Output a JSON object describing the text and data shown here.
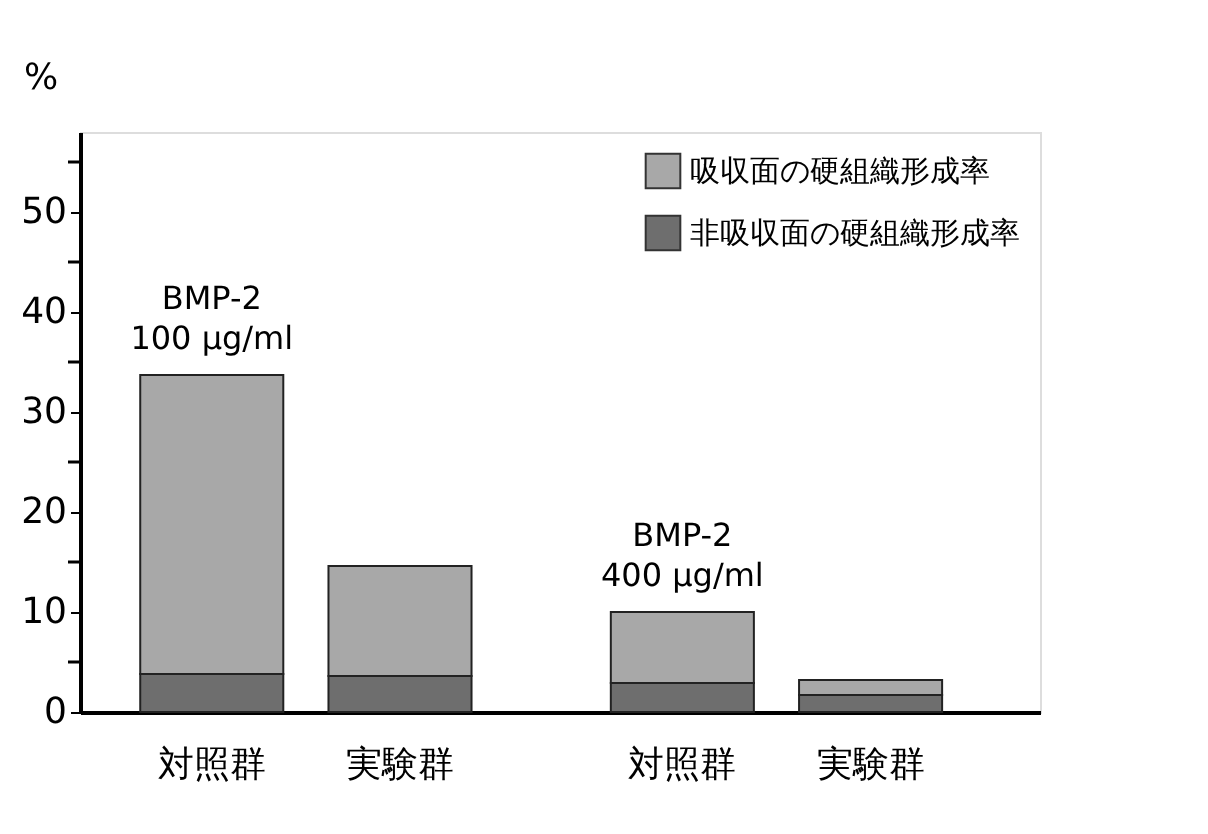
{
  "chart_data": {
    "type": "bar",
    "stacked": true,
    "ylabel": "%",
    "categories": [
      "対照群",
      "実験群",
      "対照群",
      "実験群"
    ],
    "series": [
      {
        "name": "非吸収面の硬組織形成率",
        "color": "#6e6e6e",
        "values": [
          3.8,
          3.6,
          2.9,
          1.7
        ]
      },
      {
        "name": "吸収面の硬組織形成率",
        "color": "#a8a8a8",
        "values": [
          29.9,
          11.0,
          7.1,
          1.5
        ]
      }
    ],
    "annotations": [
      "BMP-2\n100 μg/ml",
      "BMP-2\n400 μg/ml"
    ],
    "ylim": [
      0,
      58
    ],
    "yticks": [
      0,
      {
        "value": 5,
        "label": null
      },
      10,
      {
        "value": 15,
        "label": null
      },
      20,
      {
        "value": 25,
        "label": null
      },
      30,
      {
        "value": 35,
        "label": null
      },
      40,
      {
        "value": 45,
        "label": null
      },
      50,
      {
        "value": 55,
        "label": null
      }
    ],
    "legend": "top right",
    "grid": false
  }
}
